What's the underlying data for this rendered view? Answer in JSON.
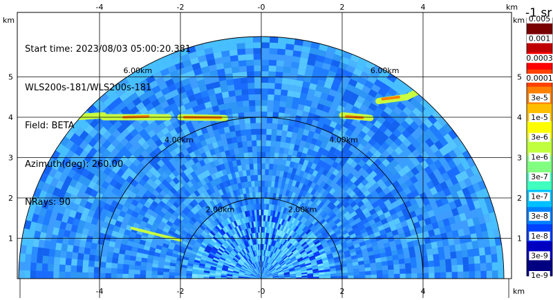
{
  "chart_data": {
    "type": "heatmap",
    "description_fields": {
      "start_time": "Start time: 2023/08/03 05:00:20.381",
      "instrument": "WLS200s-181/WLS200s-181",
      "field": "Field: BETA",
      "azimuth": "Azimuth(deg): 260.00",
      "nrays": "NRays: 90"
    },
    "x_unit": "km",
    "y_unit": "km",
    "xlim": [
      -6,
      6
    ],
    "ylim": [
      0,
      5.9
    ],
    "x_ticks": [
      "-4",
      "-2",
      "-0",
      "2",
      "4"
    ],
    "x_tick_values": [
      -4,
      -2,
      0,
      2,
      4
    ],
    "y_ticks": [
      "1",
      "2",
      "3",
      "4",
      "5"
    ],
    "y_tick_values": [
      1,
      2,
      3,
      4,
      5
    ],
    "range_rings": [
      {
        "radius_km": 2,
        "label": "2.00km"
      },
      {
        "radius_km": 4,
        "label": "4.00km"
      },
      {
        "radius_km": 6,
        "label": "6.00km"
      }
    ],
    "max_range_km": 6,
    "grid": true,
    "colorbar": {
      "title": "-1 sr",
      "labels": [
        "0.005",
        "0.001",
        "0.0003",
        "0.0001",
        "3e-5",
        "1e-5",
        "3e-6",
        "1e-6",
        "3e-7",
        "1e-7",
        "3e-8",
        "1e-8",
        "3e-9",
        "1e-9"
      ],
      "colors": [
        "#7a0000",
        "#c00000",
        "#ff0000",
        "#ff4000",
        "#ff8000",
        "#ffbf00",
        "#ffff00",
        "#c0ff40",
        "#80ff80",
        "#40ffbf",
        "#00c0ff",
        "#0080ff",
        "#0040ff",
        "#0000c0",
        "#000080"
      ]
    },
    "colors": {
      "background_field": "#2b8cff",
      "near_field": "#4cc8ff",
      "aerosol_band": "#c8ff40",
      "aerosol_band_core": "#ff8000"
    }
  }
}
